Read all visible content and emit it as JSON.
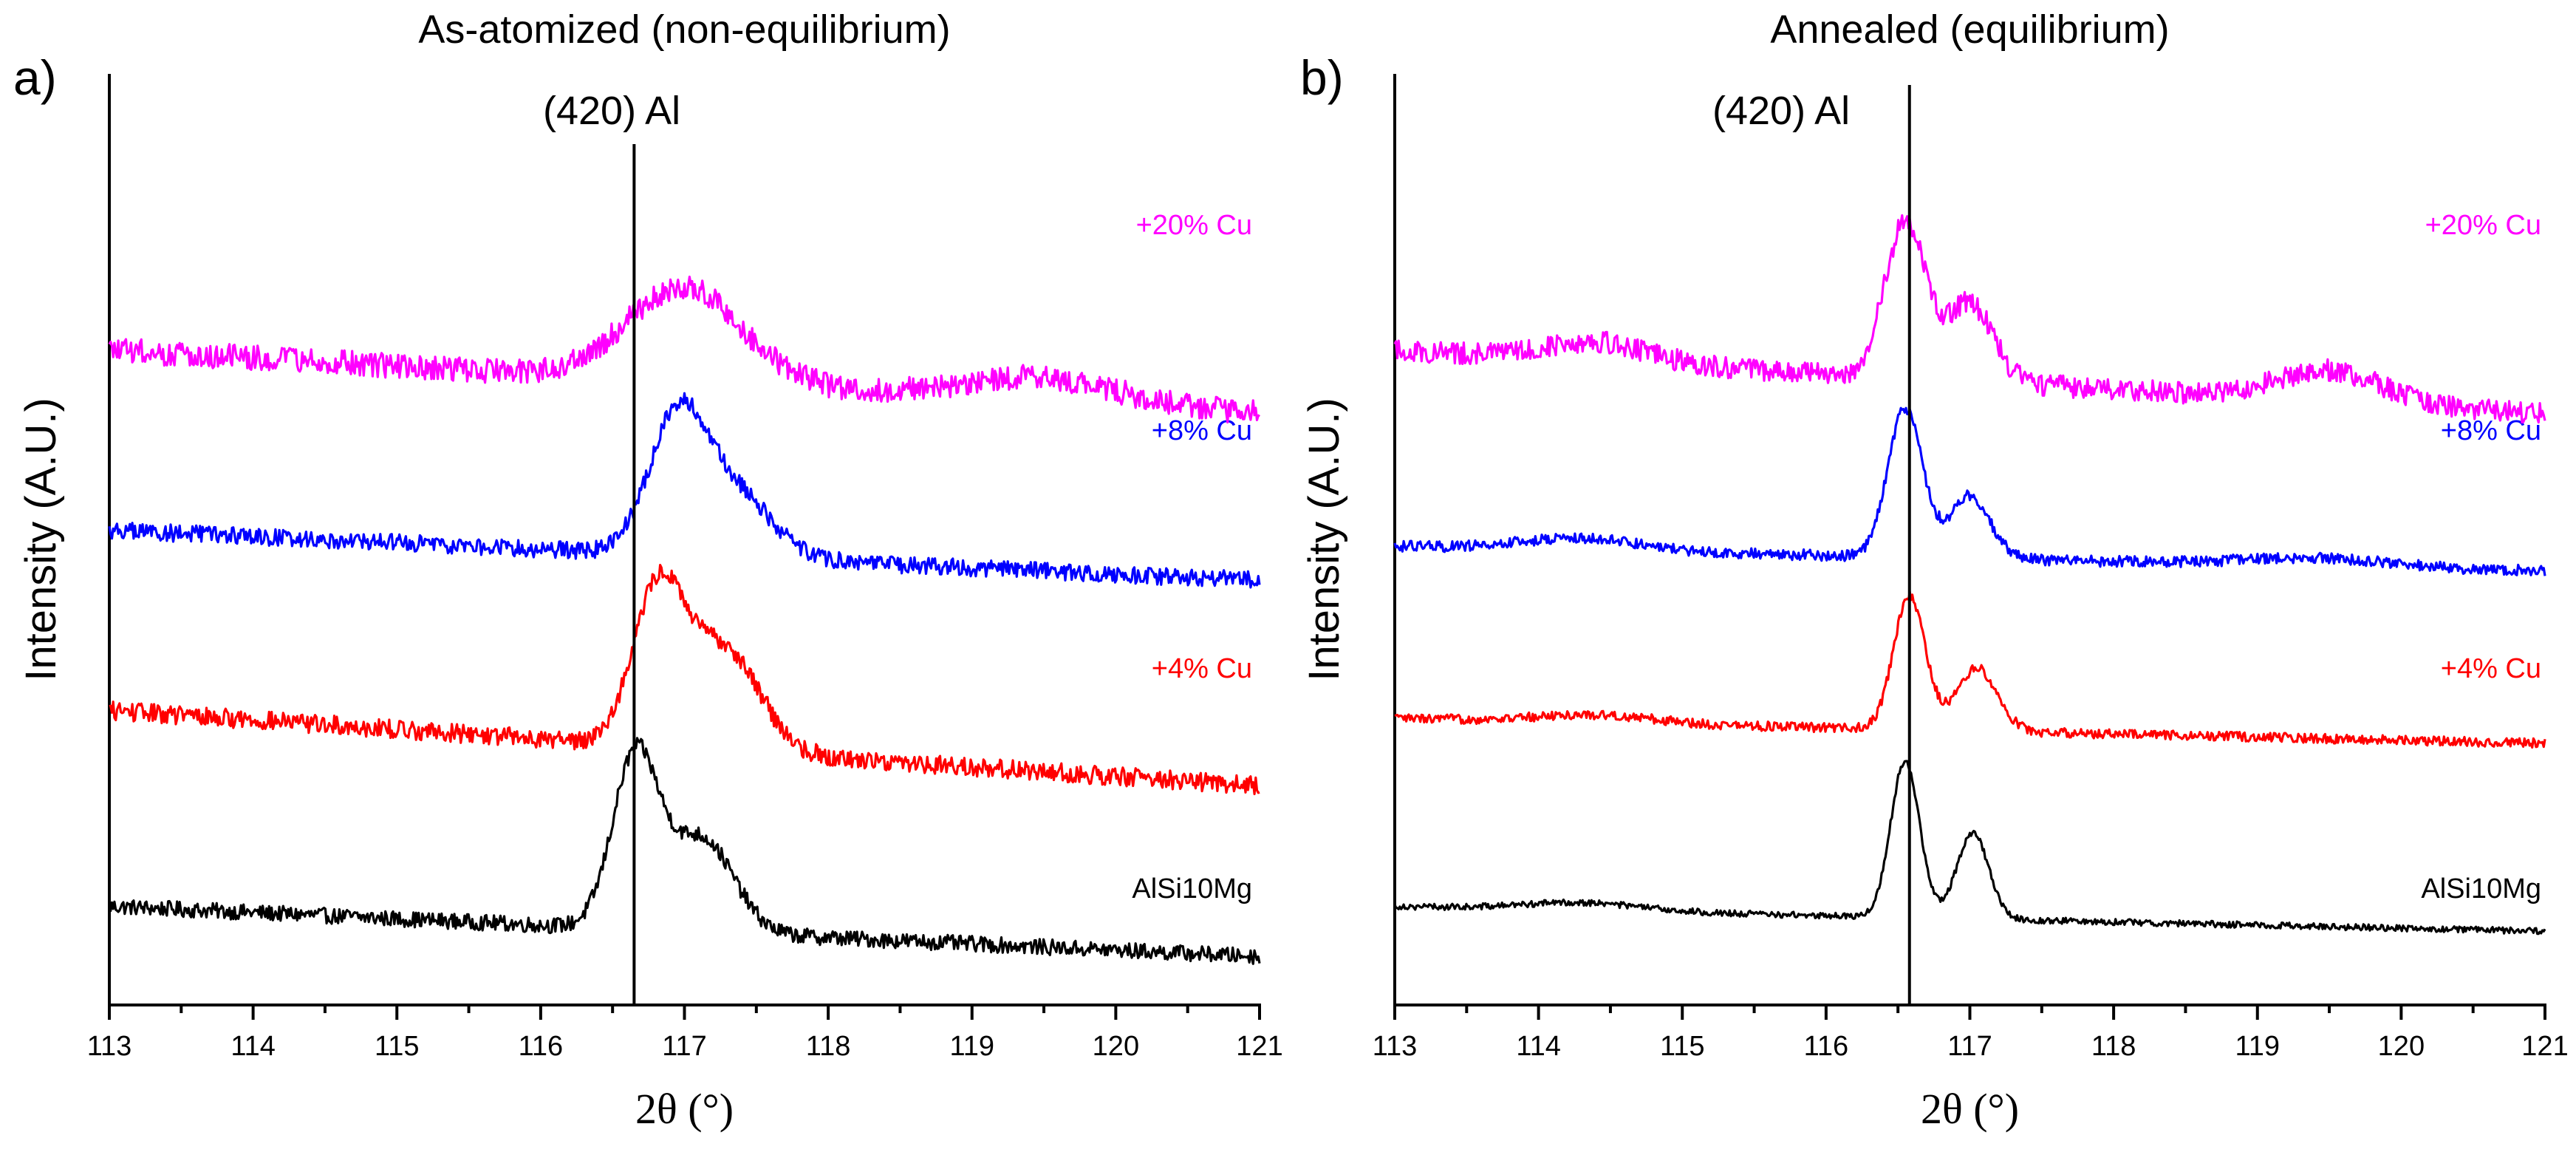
{
  "chart_data": [
    {
      "type": "line",
      "panel_label": "a)",
      "title": "As-atomized (non-equilibrium)",
      "xlabel": "2θ (°)",
      "ylabel": "Intensity (A.U.)",
      "xlim": [
        113,
        121
      ],
      "x_ticks": [
        113,
        114,
        115,
        116,
        117,
        118,
        119,
        120,
        121
      ],
      "reference_line": {
        "x": 116.65,
        "label": "(420) Al"
      },
      "series": [
        {
          "name": "AlSi10Mg",
          "color": "#000000",
          "baseline": 0.06,
          "slope": -0.008,
          "noise": 0.01,
          "peaks": [
            [
              116.66,
              0.22,
              0.16
            ],
            [
              117.12,
              0.12,
              0.22
            ]
          ]
        },
        {
          "name": "+4% Cu",
          "color": "#ff0000",
          "baseline": 0.31,
          "slope": -0.012,
          "noise": 0.012,
          "peaks": [
            [
              116.82,
              0.2,
              0.18
            ],
            [
              117.28,
              0.13,
              0.24
            ]
          ]
        },
        {
          "name": "+8% Cu",
          "color": "#0000ff",
          "baseline": 0.54,
          "slope": -0.008,
          "noise": 0.011,
          "peaks": [
            [
              116.95,
              0.17,
              0.2
            ],
            [
              117.35,
              0.08,
              0.26
            ]
          ]
        },
        {
          "name": "+20% Cu",
          "color": "#ff00ff",
          "baseline": 0.77,
          "slope": -0.01,
          "noise": 0.016,
          "peaks": [
            [
              117.0,
              0.12,
              0.4
            ],
            [
              119.5,
              0.03,
              0.5
            ]
          ]
        }
      ]
    },
    {
      "type": "line",
      "panel_label": "b)",
      "title": "Annealed (equilibrium)",
      "xlabel": "2θ (°)",
      "ylabel": "Intensity (A.U.)",
      "xlim": [
        113,
        121
      ],
      "x_ticks": [
        113,
        114,
        115,
        116,
        117,
        118,
        119,
        120,
        121
      ],
      "reference_line": {
        "x": 116.58,
        "label": "(420) Al"
      },
      "series": [
        {
          "name": "AlSi10Mg",
          "color": "#000000",
          "baseline": 0.06,
          "slope": -0.004,
          "noise": 0.004,
          "peaks": [
            [
              116.55,
              0.2,
              0.1
            ],
            [
              117.02,
              0.11,
              0.11
            ],
            [
              114.3,
              0.01,
              0.4
            ]
          ]
        },
        {
          "name": "+4% Cu",
          "color": "#ff0000",
          "baseline": 0.3,
          "slope": -0.004,
          "noise": 0.006,
          "peaks": [
            [
              116.58,
              0.17,
              0.11
            ],
            [
              117.05,
              0.08,
              0.14
            ],
            [
              114.4,
              0.01,
              0.4
            ]
          ]
        },
        {
          "name": "+8% Cu",
          "color": "#0000ff",
          "baseline": 0.52,
          "slope": -0.004,
          "noise": 0.007,
          "peaks": [
            [
              116.55,
              0.19,
              0.12
            ],
            [
              117.0,
              0.08,
              0.14
            ],
            [
              114.3,
              0.015,
              0.4
            ],
            [
              119.4,
              0.01,
              0.5
            ]
          ]
        },
        {
          "name": "+20% Cu",
          "color": "#ff00ff",
          "baseline": 0.77,
          "slope": -0.01,
          "noise": 0.014,
          "peaks": [
            [
              116.55,
              0.2,
              0.14
            ],
            [
              117.0,
              0.1,
              0.16
            ],
            [
              114.4,
              0.025,
              0.35
            ],
            [
              119.5,
              0.04,
              0.35
            ]
          ]
        }
      ]
    }
  ]
}
